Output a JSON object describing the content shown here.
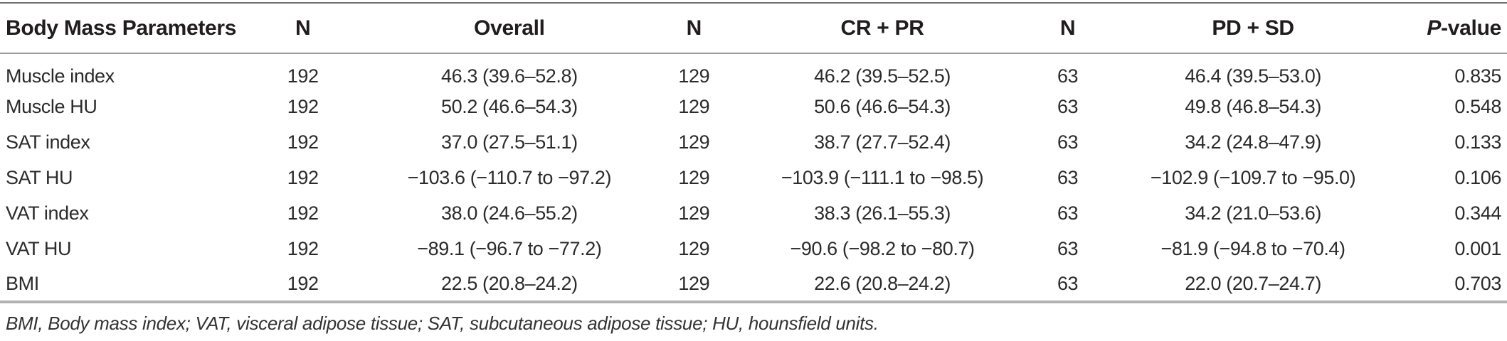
{
  "table": {
    "columns": [
      {
        "label": "Body Mass Parameters"
      },
      {
        "label": "N"
      },
      {
        "label": "Overall"
      },
      {
        "label": "N"
      },
      {
        "label": "CR + PR"
      },
      {
        "label": "N"
      },
      {
        "label": "PD + SD"
      },
      {
        "italic": "P",
        "rest": "-value"
      }
    ],
    "rows": [
      [
        "Muscle index",
        "192",
        "46.3 (39.6–52.8)",
        "129",
        "46.2 (39.5–52.5)",
        "63",
        "46.4 (39.5–53.0)",
        "0.835"
      ],
      [
        "Muscle HU",
        "192",
        "50.2 (46.6–54.3)",
        "129",
        "50.6 (46.6–54.3)",
        "63",
        "49.8 (46.8–54.3)",
        "0.548"
      ],
      [
        "SAT index",
        "192",
        "37.0 (27.5–51.1)",
        "129",
        "38.7 (27.7–52.4)",
        "63",
        "34.2 (24.8–47.9)",
        "0.133"
      ],
      [
        "SAT HU",
        "192",
        "−103.6 (−110.7 to −97.2)",
        "129",
        "−103.9 (−111.1 to −98.5)",
        "63",
        "−102.9 (−109.7 to −95.0)",
        "0.106"
      ],
      [
        "VAT index",
        "192",
        "38.0 (24.6–55.2)",
        "129",
        "38.3 (26.1–55.3)",
        "63",
        "34.2 (21.0–53.6)",
        "0.344"
      ],
      [
        "VAT HU",
        "192",
        "−89.1 (−96.7 to −77.2)",
        "129",
        "−90.6 (−98.2 to −80.7)",
        "63",
        "−81.9 (−94.8 to −70.4)",
        "0.001"
      ],
      [
        "BMI",
        "192",
        "22.5 (20.8–24.2)",
        "129",
        "22.6 (20.8–24.2)",
        "63",
        "22.0 (20.7–24.7)",
        "0.703"
      ]
    ],
    "footnote": "BMI, Body mass index; VAT, visceral adipose tissue; SAT, subcutaneous adipose tissue; HU, hounsfield units."
  },
  "colors": {
    "text": "#2b2b2b",
    "rule_top": "#6f6f6f",
    "rule_header": "#9c9c9c",
    "rule_bottom": "#b2b2b2"
  }
}
